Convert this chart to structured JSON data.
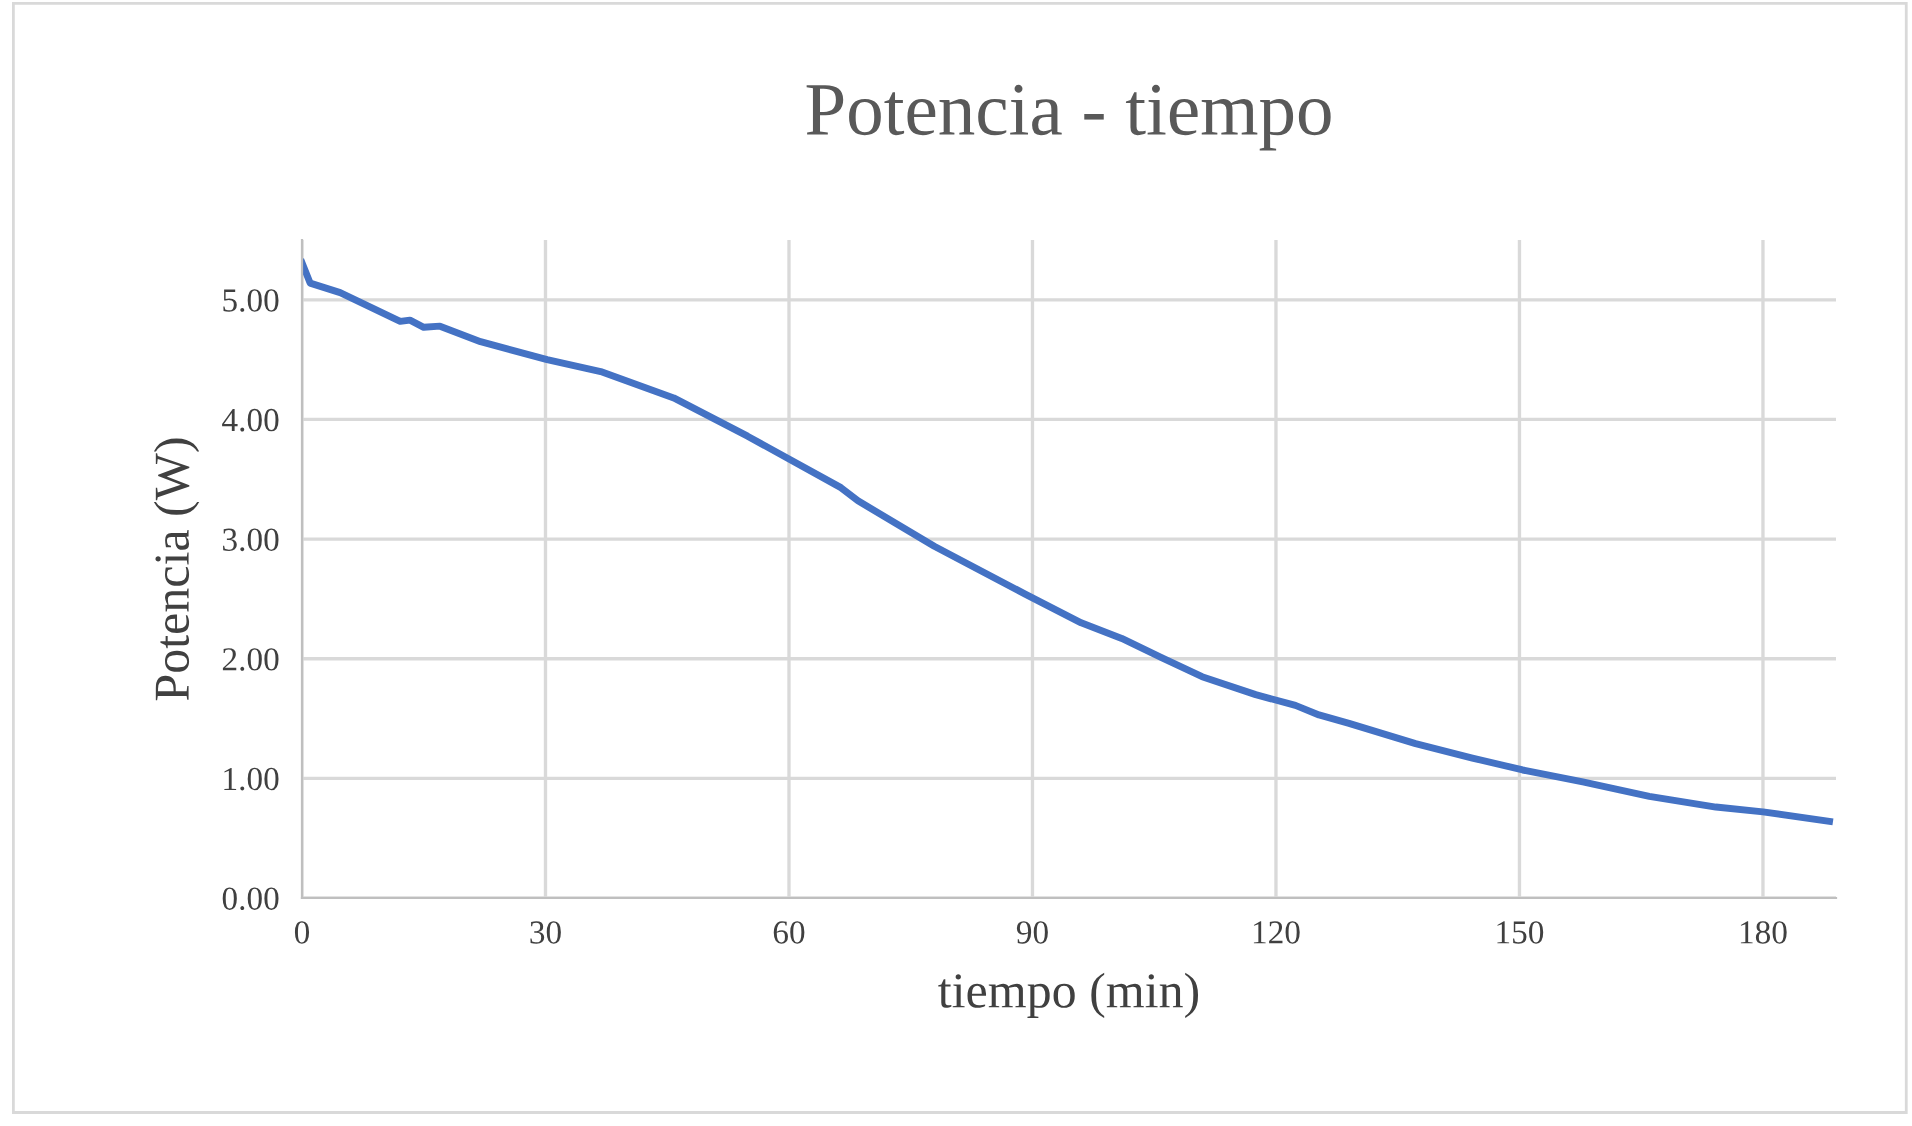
{
  "chart_data": {
    "type": "line",
    "title": "Potencia - tiempo",
    "xlabel": "tiempo (min)",
    "ylabel": "Potencia (W)",
    "x": [
      0,
      1,
      4.7,
      12.1,
      13.3,
      15,
      17,
      22,
      30.2,
      36.8,
      45.8,
      54.9,
      60,
      66.4,
      68.5,
      77.9,
      89.1,
      96,
      101,
      105.9,
      110.9,
      117.5,
      122.4,
      125.3,
      129,
      137.2,
      144.2,
      150.4,
      157.8,
      166,
      174.2,
      180,
      188.2
    ],
    "series": [
      {
        "color": "#4472c4",
        "values": [
          5.31,
          5.14,
          5.06,
          4.82,
          4.83,
          4.77,
          4.78,
          4.65,
          4.5,
          4.4,
          4.18,
          3.86,
          3.67,
          3.43,
          3.32,
          2.94,
          2.54,
          2.3,
          2.17,
          2.01,
          1.85,
          1.7,
          1.61,
          1.53,
          1.46,
          1.29,
          1.17,
          1.07,
          0.97,
          0.85,
          0.76,
          0.72,
          0.64
        ]
      }
    ],
    "xlim": [
      0,
      189
    ],
    "xticks": [
      0,
      30,
      60,
      90,
      120,
      150,
      180
    ],
    "ylim": [
      0,
      5.5
    ],
    "yticks": [
      {
        "value": 0,
        "label": "0.00"
      },
      {
        "value": 1,
        "label": "1.00"
      },
      {
        "value": 2,
        "label": "2.00"
      },
      {
        "value": 3,
        "label": "3.00"
      },
      {
        "value": 4,
        "label": "4.00"
      },
      {
        "value": 5,
        "label": "5.00"
      }
    ],
    "grid": true,
    "marker": "none",
    "line_style": "solid"
  }
}
